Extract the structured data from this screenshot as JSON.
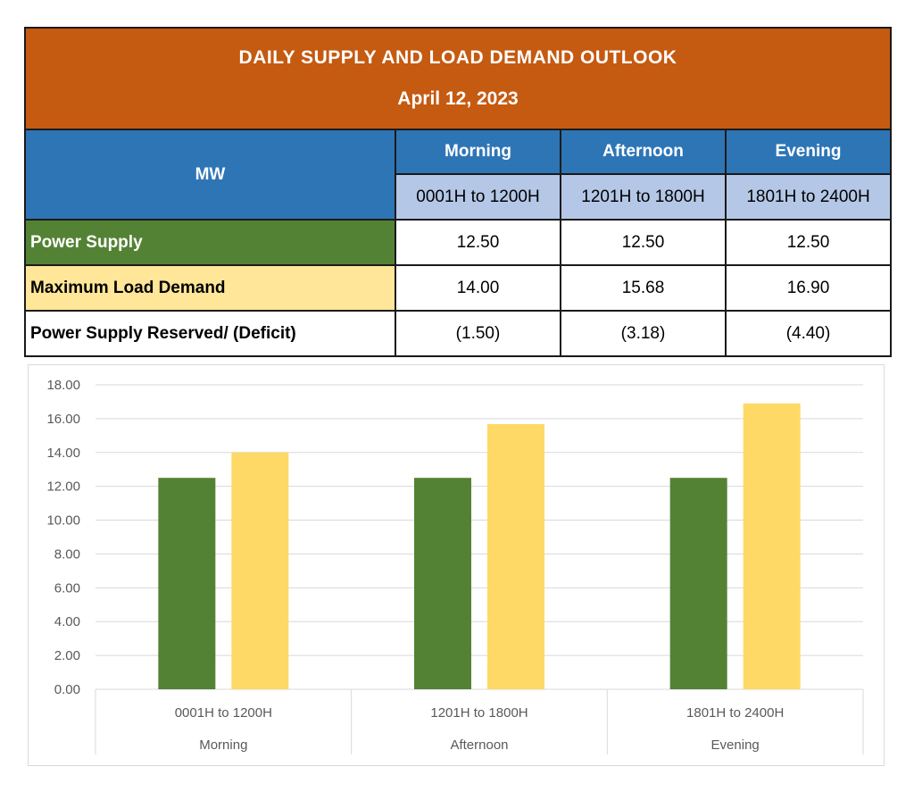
{
  "table": {
    "title": "DAILY SUPPLY AND LOAD DEMAND OUTLOOK",
    "date": "April 12, 2023",
    "unit_label": "MW",
    "periods": [
      "Morning",
      "Afternoon",
      "Evening"
    ],
    "ranges": [
      "0001H to 1200H",
      "1201H to 1800H",
      "1801H to 2400H"
    ],
    "rows": [
      {
        "label": "Power Supply",
        "values": [
          "12.50",
          "12.50",
          "12.50"
        ]
      },
      {
        "label": "Maximum Load Demand",
        "values": [
          "14.00",
          "15.68",
          "16.90"
        ]
      },
      {
        "label": "Power Supply Reserved/ (Deficit)",
        "values": [
          "(1.50)",
          "(3.18)",
          "(4.40)"
        ]
      }
    ],
    "colors": {
      "title_bg": "#c55a11",
      "header_bg": "#2e75b6",
      "range_bg": "#b4c7e7",
      "supply_bg": "#548235",
      "demand_bg": "#ffe699"
    }
  },
  "chart_data": {
    "type": "bar",
    "categories": [
      "0001H to 1200H",
      "1201H to 1800H",
      "1801H to 2400H"
    ],
    "category_groups": [
      "Morning",
      "Afternoon",
      "Evening"
    ],
    "series": [
      {
        "values": [
          12.5,
          12.5,
          12.5
        ],
        "color": "#548235"
      },
      {
        "values": [
          14.0,
          15.68,
          16.9
        ],
        "color": "#ffd966"
      }
    ],
    "ylim": [
      0,
      18
    ],
    "yticks": [
      "0.00",
      "2.00",
      "4.00",
      "6.00",
      "8.00",
      "10.00",
      "12.00",
      "14.00",
      "16.00",
      "18.00"
    ],
    "grid": true,
    "legend": "none"
  }
}
